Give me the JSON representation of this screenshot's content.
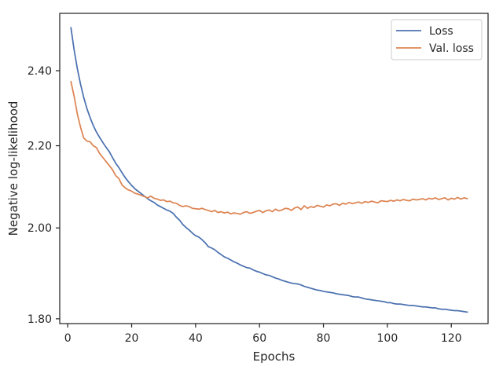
{
  "chart_data": {
    "type": "line",
    "title": "",
    "xlabel": "Epochs",
    "ylabel": "Negative log-likelihood",
    "yscale": "log",
    "xlim": [
      -2.5,
      131.5
    ],
    "ylim": [
      1.79,
      2.565
    ],
    "x_ticks": [
      0,
      20,
      40,
      60,
      80,
      100,
      120
    ],
    "x_tick_labels": [
      "0",
      "20",
      "40",
      "60",
      "80",
      "100",
      "120"
    ],
    "y_ticks": [
      1.8,
      2.0,
      2.2,
      2.4
    ],
    "y_tick_labels": [
      "1.80",
      "2.00",
      "2.20",
      "2.40"
    ],
    "grid": false,
    "legend_position": "top-right",
    "series": [
      {
        "name": "Loss",
        "color": "#4c72b0",
        "x_start": 1,
        "x_step": 1,
        "values": [
          2.523,
          2.459,
          2.406,
          2.363,
          2.327,
          2.297,
          2.273,
          2.252,
          2.235,
          2.221,
          2.208,
          2.196,
          2.185,
          2.17,
          2.156,
          2.145,
          2.132,
          2.12,
          2.11,
          2.101,
          2.093,
          2.087,
          2.081,
          2.075,
          2.069,
          2.064,
          2.06,
          2.054,
          2.05,
          2.046,
          2.042,
          2.039,
          2.034,
          2.025,
          2.018,
          2.008,
          2.001,
          1.995,
          1.988,
          1.982,
          1.979,
          1.973,
          1.966,
          1.957,
          1.954,
          1.95,
          1.944,
          1.939,
          1.934,
          1.931,
          1.927,
          1.923,
          1.92,
          1.916,
          1.913,
          1.91,
          1.909,
          1.905,
          1.902,
          1.9,
          1.897,
          1.894,
          1.893,
          1.89,
          1.887,
          1.885,
          1.882,
          1.88,
          1.878,
          1.876,
          1.875,
          1.874,
          1.872,
          1.869,
          1.867,
          1.865,
          1.863,
          1.861,
          1.86,
          1.858,
          1.857,
          1.856,
          1.855,
          1.853,
          1.852,
          1.851,
          1.85,
          1.849,
          1.847,
          1.846,
          1.846,
          1.844,
          1.842,
          1.841,
          1.84,
          1.839,
          1.838,
          1.837,
          1.836,
          1.834,
          1.834,
          1.832,
          1.831,
          1.831,
          1.83,
          1.829,
          1.828,
          1.828,
          1.827,
          1.826,
          1.825,
          1.825,
          1.824,
          1.823,
          1.823,
          1.821,
          1.82,
          1.82,
          1.819,
          1.818,
          1.817,
          1.817,
          1.816,
          1.815,
          1.814
        ]
      },
      {
        "name": "Val. loss",
        "color": "#dd8452",
        "x_start": 1,
        "x_step": 1,
        "values": [
          2.37,
          2.33,
          2.283,
          2.248,
          2.22,
          2.212,
          2.21,
          2.2,
          2.195,
          2.18,
          2.17,
          2.16,
          2.15,
          2.14,
          2.125,
          2.118,
          2.102,
          2.095,
          2.09,
          2.087,
          2.082,
          2.08,
          2.077,
          2.074,
          2.071,
          2.075,
          2.07,
          2.068,
          2.065,
          2.066,
          2.062,
          2.063,
          2.059,
          2.058,
          2.053,
          2.05,
          2.052,
          2.05,
          2.046,
          2.045,
          2.044,
          2.046,
          2.043,
          2.041,
          2.038,
          2.041,
          2.036,
          2.038,
          2.035,
          2.037,
          2.033,
          2.035,
          2.034,
          2.032,
          2.036,
          2.038,
          2.034,
          2.036,
          2.039,
          2.041,
          2.036,
          2.04,
          2.042,
          2.038,
          2.044,
          2.04,
          2.042,
          2.046,
          2.045,
          2.041,
          2.047,
          2.049,
          2.043,
          2.052,
          2.046,
          2.05,
          2.048,
          2.053,
          2.051,
          2.049,
          2.054,
          2.052,
          2.056,
          2.057,
          2.053,
          2.058,
          2.056,
          2.06,
          2.057,
          2.059,
          2.061,
          2.058,
          2.062,
          2.06,
          2.063,
          2.061,
          2.059,
          2.064,
          2.063,
          2.062,
          2.065,
          2.063,
          2.066,
          2.064,
          2.067,
          2.065,
          2.064,
          2.068,
          2.066,
          2.067,
          2.069,
          2.066,
          2.07,
          2.068,
          2.071,
          2.067,
          2.069,
          2.071,
          2.066,
          2.07,
          2.068,
          2.072,
          2.068,
          2.071,
          2.069
        ]
      }
    ]
  }
}
